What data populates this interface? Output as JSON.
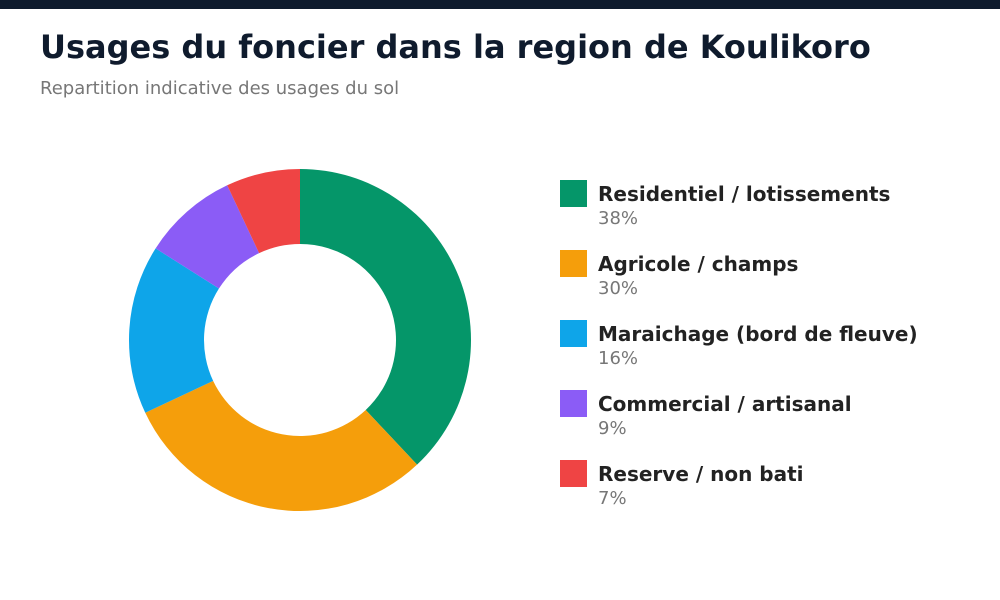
{
  "header": {
    "title": "Usages du foncier dans la region de Koulikoro",
    "subtitle": "Repartition indicative des usages du sol"
  },
  "colors": {
    "top_bar": "#0f1b2d",
    "title": "#0f1b2d"
  },
  "chart_data": {
    "type": "pie",
    "title": "Usages du foncier dans la region de Koulikoro",
    "subtitle": "Repartition indicative des usages du sol",
    "legend_position": "right",
    "donut": true,
    "series": [
      {
        "name": "Residentiel / lotissements",
        "value": 38,
        "label": "38%",
        "color": "#059669"
      },
      {
        "name": "Agricole / champs",
        "value": 30,
        "label": "30%",
        "color": "#f59e0b"
      },
      {
        "name": "Maraichage (bord de fleuve)",
        "value": 16,
        "label": "16%",
        "color": "#0ea5e9"
      },
      {
        "name": "Commercial / artisanal",
        "value": 9,
        "label": "9%",
        "color": "#8b5cf6"
      },
      {
        "name": "Reserve / non bati",
        "value": 7,
        "label": "7%",
        "color": "#ef4444"
      }
    ]
  }
}
